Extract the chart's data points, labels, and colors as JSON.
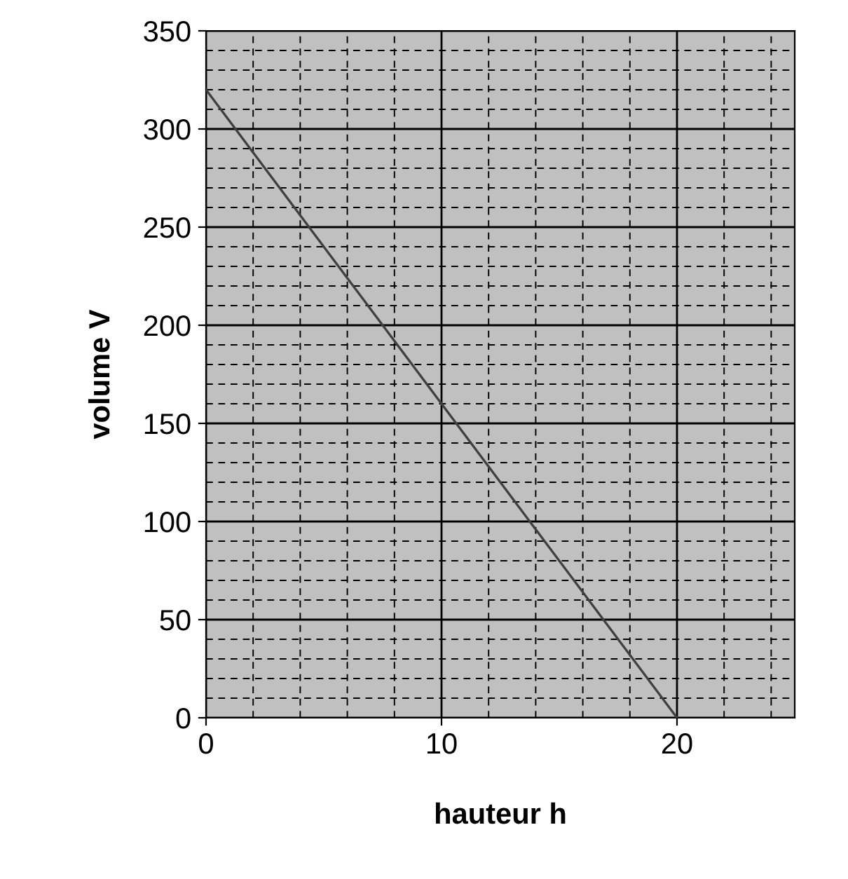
{
  "chart_data": {
    "type": "line",
    "xlabel": "hauteur h",
    "ylabel": "volume V",
    "x": [
      0,
      20
    ],
    "series": [
      {
        "color": "#404040",
        "values": [
          320,
          0
        ]
      }
    ],
    "xlim": [
      0,
      25
    ],
    "xticks": [
      0,
      10,
      20
    ],
    "ylim": [
      0,
      350
    ],
    "yticks": [
      0,
      50,
      100,
      150,
      200,
      250,
      300,
      350
    ],
    "grid": true,
    "marker": "none",
    "line_style": "solid"
  }
}
